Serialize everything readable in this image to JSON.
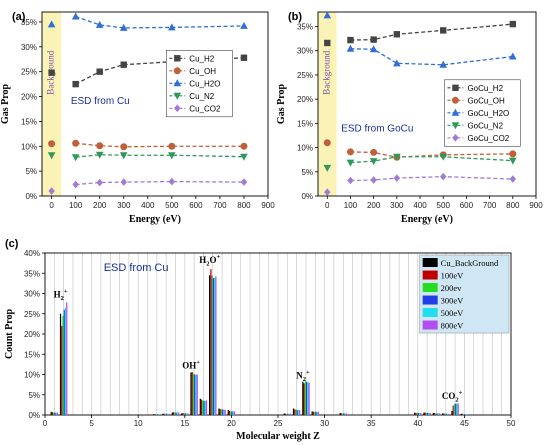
{
  "chart_data": [
    {
      "panel_label": "(a)",
      "type": "line",
      "annotation": "ESD from Cu",
      "background_label": "Background",
      "xlabel": "Energy (eV)",
      "ylabel": "Gas Prop",
      "x_ticks": [
        "0",
        "100",
        "200",
        "300",
        "400",
        "500",
        "600",
        "700",
        "800",
        "900"
      ],
      "y_ticks": [
        "0%",
        "5%",
        "10%",
        "15%",
        "20%",
        "25%",
        "30%",
        "35%"
      ],
      "xlim": [
        -40,
        900
      ],
      "ylim": [
        0,
        37
      ],
      "legend_position": "right",
      "series": [
        {
          "name": "Cu_H2",
          "color": "#444444",
          "marker": "square",
          "background": 24.8,
          "x": [
            100,
            200,
            300,
            500,
            800
          ],
          "y": [
            22.5,
            25.0,
            26.4,
            27.0,
            27.8
          ]
        },
        {
          "name": "Cu_OH",
          "color": "#c0603a",
          "marker": "circle",
          "background": 10.5,
          "x": [
            100,
            200,
            300,
            500,
            800
          ],
          "y": [
            10.6,
            10.1,
            9.9,
            10.0,
            10.0
          ]
        },
        {
          "name": "Cu_H2O",
          "color": "#2f6fd6",
          "marker": "triangle-up",
          "background": 34.5,
          "x": [
            100,
            200,
            300,
            500,
            800
          ],
          "y": [
            36.1,
            34.4,
            33.8,
            33.9,
            34.2
          ]
        },
        {
          "name": "Cu_N2",
          "color": "#2e9a5a",
          "marker": "triangle-down",
          "background": 8.2,
          "x": [
            100,
            200,
            300,
            500,
            800
          ],
          "y": [
            7.8,
            8.3,
            8.2,
            8.2,
            7.9
          ]
        },
        {
          "name": "Cu_CO2",
          "color": "#a07ad8",
          "marker": "diamond",
          "background": 1.0,
          "x": [
            100,
            200,
            300,
            500,
            800
          ],
          "y": [
            2.3,
            2.7,
            2.8,
            2.9,
            2.8
          ]
        }
      ]
    },
    {
      "panel_label": "(b)",
      "type": "line",
      "annotation": "ESD from GoCu",
      "background_label": "Background",
      "xlabel": "Energy (eV)",
      "ylabel": "Gas Prop",
      "x_ticks": [
        "0",
        "100",
        "200",
        "300",
        "400",
        "500",
        "600",
        "700",
        "800",
        "900"
      ],
      "y_ticks": [
        "0%",
        "5%",
        "10%",
        "15%",
        "20%",
        "25%",
        "30%",
        "35%"
      ],
      "xlim": [
        -40,
        900
      ],
      "ylim": [
        0,
        38
      ],
      "legend_position": "right",
      "series": [
        {
          "name": "GoCu_H2",
          "color": "#444444",
          "marker": "square",
          "background": 31.6,
          "x": [
            100,
            200,
            300,
            500,
            800
          ],
          "y": [
            32.2,
            32.3,
            33.4,
            34.2,
            35.5
          ]
        },
        {
          "name": "GoCu_OH",
          "color": "#c0603a",
          "marker": "circle",
          "background": 11.0,
          "x": [
            100,
            200,
            300,
            500,
            800
          ],
          "y": [
            9.1,
            9.0,
            8.0,
            8.5,
            8.7
          ]
        },
        {
          "name": "GoCu_H2O",
          "color": "#2f6fd6",
          "marker": "triangle-up",
          "background": 37.3,
          "x": [
            100,
            200,
            300,
            500,
            800
          ],
          "y": [
            30.4,
            30.3,
            27.4,
            27.1,
            28.8
          ]
        },
        {
          "name": "GoCu_N2",
          "color": "#2e9a5a",
          "marker": "triangle-down",
          "background": 5.8,
          "x": [
            100,
            200,
            300,
            500,
            800
          ],
          "y": [
            6.9,
            7.2,
            8.1,
            8.1,
            7.3
          ]
        },
        {
          "name": "GoCu_CO2",
          "color": "#a07ad8",
          "marker": "diamond",
          "background": 0.8,
          "x": [
            100,
            200,
            300,
            500,
            800
          ],
          "y": [
            3.2,
            3.3,
            3.7,
            4.0,
            3.5
          ]
        }
      ]
    },
    {
      "panel_label": "(c)",
      "type": "bar",
      "annotation": "ESD from Cu",
      "xlabel": "Molecular weight Z",
      "ylabel": "Count Prop",
      "x_ticks": [
        "0",
        "5",
        "10",
        "15",
        "20",
        "25",
        "30",
        "35",
        "40",
        "45",
        "50"
      ],
      "y_ticks": [
        "0%",
        "5%",
        "10%",
        "15%",
        "20%",
        "25%",
        "30%",
        "35%",
        "40%"
      ],
      "xlim": [
        0,
        50
      ],
      "ylim": [
        0,
        40
      ],
      "legend_position": "top-right",
      "peak_labels": [
        {
          "base": "H",
          "sub": "2",
          "sup": "+",
          "z": 2,
          "y": 29
        },
        {
          "base": "OH",
          "sub": "",
          "sup": "+",
          "z": 16,
          "y": 11.5
        },
        {
          "base": "H",
          "sub": "2",
          "after": "O",
          "sup": "+",
          "z": 18,
          "y": 37.5
        },
        {
          "base": "N",
          "sub": "2",
          "sup": "+",
          "z": 28,
          "y": 9
        },
        {
          "base": "CO",
          "sub": "2",
          "sup": "+",
          "z": 44,
          "y": 4
        }
      ],
      "categories": [
        1,
        2,
        12,
        13,
        14,
        15,
        16,
        17,
        18,
        19,
        20,
        26,
        27,
        28,
        29,
        32,
        40,
        41,
        42,
        43,
        44,
        45
      ],
      "series": [
        {
          "name": "Cu_BackGround",
          "color": "#000000",
          "values": [
            0.8,
            25,
            0.2,
            0.3,
            0.6,
            0.4,
            10.5,
            4,
            34.5,
            1.6,
            1.2,
            0.4,
            1.6,
            8.2,
            0.9,
            0.5,
            0.6,
            0.6,
            0.5,
            0.4,
            1.0,
            0.3
          ]
        },
        {
          "name": "100eV",
          "color": "#c00000",
          "values": [
            0.7,
            22,
            0.2,
            0.3,
            0.7,
            0.5,
            10.6,
            3.8,
            36,
            1.5,
            1.0,
            0.3,
            1.4,
            7.8,
            0.8,
            0.4,
            0.5,
            0.6,
            0.5,
            0.4,
            2.3,
            0.3
          ]
        },
        {
          "name": "200ev",
          "color": "#22dd22",
          "values": [
            0.6,
            24.5,
            0.2,
            0.3,
            0.6,
            0.4,
            10.2,
            3.6,
            34.4,
            1.4,
            0.9,
            0.3,
            1.3,
            8.3,
            0.8,
            0.4,
            0.5,
            0.5,
            0.4,
            0.3,
            2.7,
            0.2
          ]
        },
        {
          "name": "300eV",
          "color": "#1f3fe6",
          "values": [
            0.6,
            26,
            0.2,
            0.3,
            0.6,
            0.4,
            10.0,
            3.5,
            33.8,
            1.4,
            0.9,
            0.3,
            1.2,
            8.2,
            0.8,
            0.4,
            0.5,
            0.5,
            0.4,
            0.3,
            2.8,
            0.2
          ]
        },
        {
          "name": "500eV",
          "color": "#22ddee",
          "values": [
            0.6,
            26.5,
            0.2,
            0.3,
            0.6,
            0.4,
            10.0,
            3.5,
            33.9,
            1.3,
            0.9,
            0.3,
            1.2,
            8.2,
            0.8,
            0.4,
            0.5,
            0.5,
            0.4,
            0.3,
            2.9,
            0.2
          ]
        },
        {
          "name": "800eV",
          "color": "#b24ef0",
          "values": [
            0.6,
            27.8,
            0.2,
            0.3,
            0.6,
            0.4,
            10.0,
            3.6,
            34.2,
            1.3,
            0.9,
            0.3,
            1.2,
            7.9,
            0.8,
            0.4,
            0.5,
            0.5,
            0.4,
            0.3,
            2.8,
            0.2
          ]
        }
      ]
    }
  ]
}
